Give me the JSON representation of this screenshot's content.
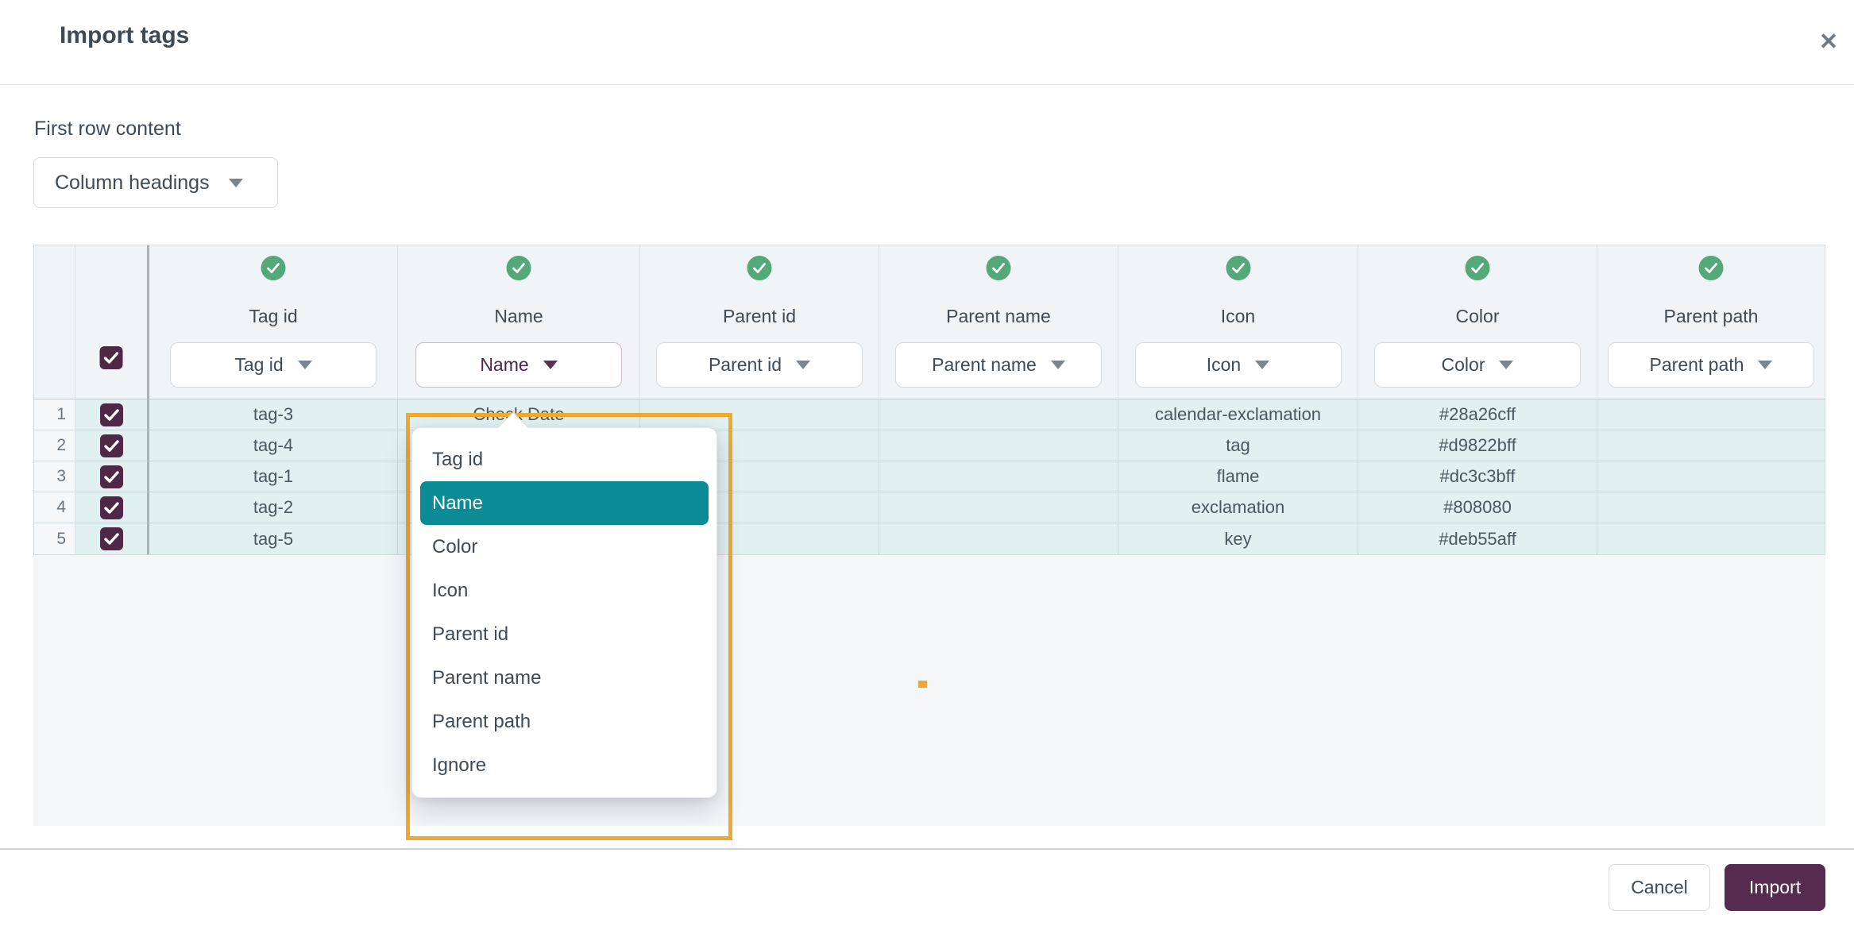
{
  "modal": {
    "title": "Import tags"
  },
  "icons": {
    "close": "✕"
  },
  "first_row_content": {
    "label": "First row content",
    "value": "Column headings"
  },
  "grid": {
    "select_all_checked": true,
    "columns": [
      {
        "key": "tag-id",
        "title": "Tag id",
        "mapping_label": "Tag id",
        "status": "mapped",
        "active": false
      },
      {
        "key": "name",
        "title": "Name",
        "mapping_label": "Name",
        "status": "mapped",
        "active": true
      },
      {
        "key": "parent-id",
        "title": "Parent id",
        "mapping_label": "Parent id",
        "status": "mapped",
        "active": false
      },
      {
        "key": "parent-name",
        "title": "Parent name",
        "mapping_label": "Parent name",
        "status": "mapped",
        "active": false
      },
      {
        "key": "icon",
        "title": "Icon",
        "mapping_label": "Icon",
        "status": "mapped",
        "active": false
      },
      {
        "key": "color",
        "title": "Color",
        "mapping_label": "Color",
        "status": "mapped",
        "active": false
      },
      {
        "key": "parent-path",
        "title": "Parent path",
        "mapping_label": "Parent path",
        "status": "mapped",
        "active": false
      }
    ],
    "rows": [
      {
        "num": "1",
        "checked": true,
        "cells": [
          "tag-3",
          "Check Date",
          "",
          "",
          "calendar-exclamation",
          "#28a26cff",
          ""
        ]
      },
      {
        "num": "2",
        "checked": true,
        "cells": [
          "tag-4",
          "",
          "",
          "",
          "tag",
          "#d9822bff",
          ""
        ]
      },
      {
        "num": "3",
        "checked": true,
        "cells": [
          "tag-1",
          "",
          "",
          "",
          "flame",
          "#dc3c3bff",
          ""
        ]
      },
      {
        "num": "4",
        "checked": true,
        "cells": [
          "tag-2",
          "",
          "",
          "",
          "exclamation",
          "#808080",
          ""
        ]
      },
      {
        "num": "5",
        "checked": true,
        "cells": [
          "tag-5",
          "",
          "",
          "",
          "key",
          "#deb55aff",
          ""
        ]
      }
    ]
  },
  "mapping_menu": {
    "for_column": "Name",
    "selected_index": 1,
    "items": [
      "Tag id",
      "Name",
      "Color",
      "Icon",
      "Parent id",
      "Parent name",
      "Parent path",
      "Ignore"
    ]
  },
  "footer": {
    "cancel_label": "Cancel",
    "import_label": "Import"
  },
  "colors": {
    "accent_teal": "#0b8b95",
    "plum": "#4f2747",
    "focus_orange": "#efa930",
    "mapped_green": "#55a878",
    "row_highlight": "#e1f0f1"
  }
}
